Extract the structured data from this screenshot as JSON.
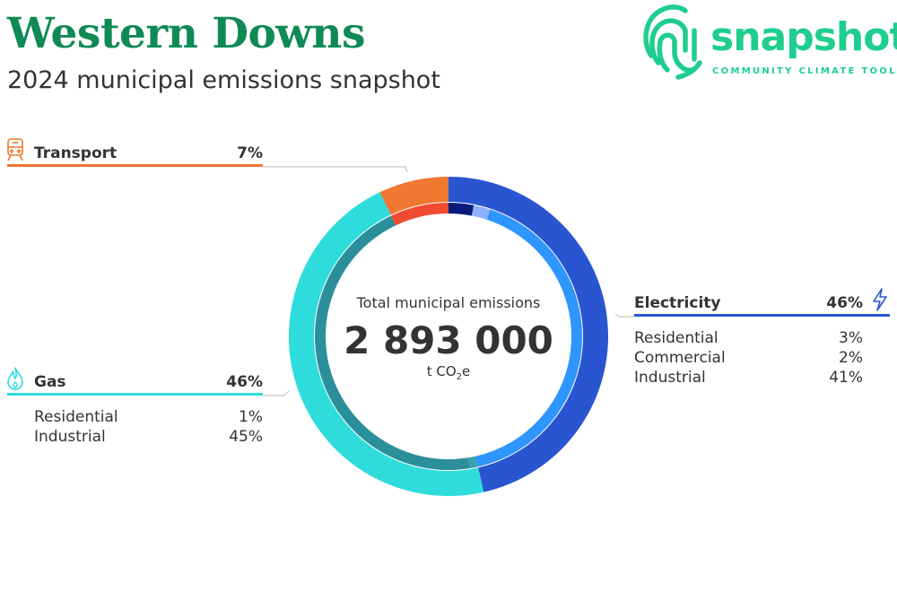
{
  "header": {
    "title": "Western Downs",
    "subtitle": "2024 municipal emissions snapshot"
  },
  "logo": {
    "word": "snapshot",
    "tagline": "COMMUNITY CLIMATE TOOL",
    "color": "#1fce8e"
  },
  "center": {
    "label": "Total municipal emissions",
    "value": "2 893 000",
    "unit_prefix": "t CO",
    "unit_sub": "2",
    "unit_suffix": "e"
  },
  "chart_data": {
    "type": "pie",
    "style": "donut",
    "categories": [
      {
        "key": "transport",
        "name": "Transport",
        "value_label": "7%",
        "percent": 7,
        "color": "#f07830",
        "icon": "train-icon",
        "subcategories": []
      },
      {
        "key": "electricity",
        "name": "Electricity",
        "value_label": "46%",
        "percent": 46,
        "color": "#2a55d0",
        "icon": "lightning-icon",
        "subcategories": [
          {
            "name": "Residential",
            "value_label": "3%",
            "percent": 3,
            "color": "#0a1a7a"
          },
          {
            "name": "Commercial",
            "value_label": "2%",
            "percent": 2,
            "color": "#8fb0ff"
          },
          {
            "name": "Industrial",
            "value_label": "41%",
            "percent": 41,
            "color": "#2f95ff"
          }
        ]
      },
      {
        "key": "gas",
        "name": "Gas",
        "value_label": "46%",
        "percent": 46,
        "color": "#2edcdc",
        "icon": "flame-icon",
        "subcategories": [
          {
            "name": "Residential",
            "value_label": "1%",
            "percent": 1,
            "color": "#3aa0b0"
          },
          {
            "name": "Industrial",
            "value_label": "45%",
            "percent": 45,
            "color": "#2a8f9a"
          }
        ]
      }
    ],
    "ring_order": [
      "electricity",
      "gas",
      "transport"
    ],
    "transport_inner_color": "#f04a30"
  }
}
